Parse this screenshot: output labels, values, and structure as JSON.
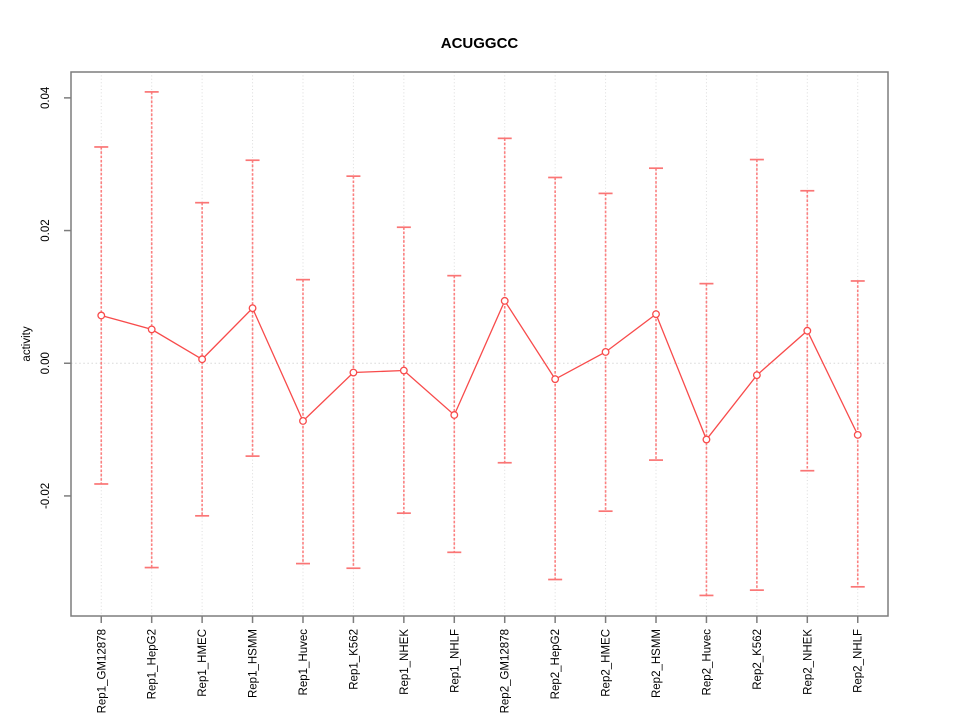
{
  "chart_data": {
    "type": "line",
    "title": "ACUGGCC",
    "xlabel": "",
    "ylabel": "activity",
    "categories": [
      "Rep1_GM12878",
      "Rep1_HepG2",
      "Rep1_HMEC",
      "Rep1_HSMM",
      "Rep1_Huvec",
      "Rep1_K562",
      "Rep1_NHEK",
      "Rep1_NHLF",
      "Rep2_GM12878",
      "Rep2_HepG2",
      "Rep2_HMEC",
      "Rep2_HSMM",
      "Rep2_Huvec",
      "Rep2_K562",
      "Rep2_NHEK",
      "Rep2_NHLF"
    ],
    "series": [
      {
        "name": "activity",
        "values": [
          0.0072,
          0.0051,
          0.0006,
          0.0083,
          -0.0087,
          -0.0014,
          -0.0011,
          -0.0078,
          0.0094,
          -0.0024,
          0.0017,
          0.0074,
          -0.0115,
          -0.0018,
          0.0049,
          -0.0108
        ],
        "err_high": [
          0.0326,
          0.0409,
          0.0242,
          0.0306,
          0.0126,
          0.0282,
          0.0205,
          0.0132,
          0.0339,
          0.028,
          0.0256,
          0.0294,
          0.012,
          0.0307,
          0.026,
          0.0124
        ],
        "err_low": [
          -0.0182,
          -0.0308,
          -0.023,
          -0.014,
          -0.0302,
          -0.0309,
          -0.0226,
          -0.0285,
          -0.015,
          -0.0326,
          -0.0223,
          -0.0146,
          -0.035,
          -0.0342,
          -0.0162,
          -0.0337
        ]
      }
    ],
    "y_ticks": {
      "values": [
        -0.02,
        0.0,
        0.02,
        0.04
      ],
      "labels": [
        "-0.02",
        "0.00",
        "0.02",
        "0.04"
      ]
    },
    "ylim": [
      -0.0381,
      0.0439
    ],
    "grid": {
      "vertical_dotted_per_category": true,
      "zero_dotted_line": true,
      "legend": "none"
    },
    "colors": {
      "series_line": "#f84b4b",
      "point_stroke": "#f84b4b",
      "error_bar": "#fb8080",
      "error_cap": "#fa7575",
      "gridline": "#dcdcdc",
      "zero_line": "#d8d8d8",
      "axis_box": "#7d7d7d",
      "tick": "#7d7d7d",
      "text": "#000000"
    }
  }
}
